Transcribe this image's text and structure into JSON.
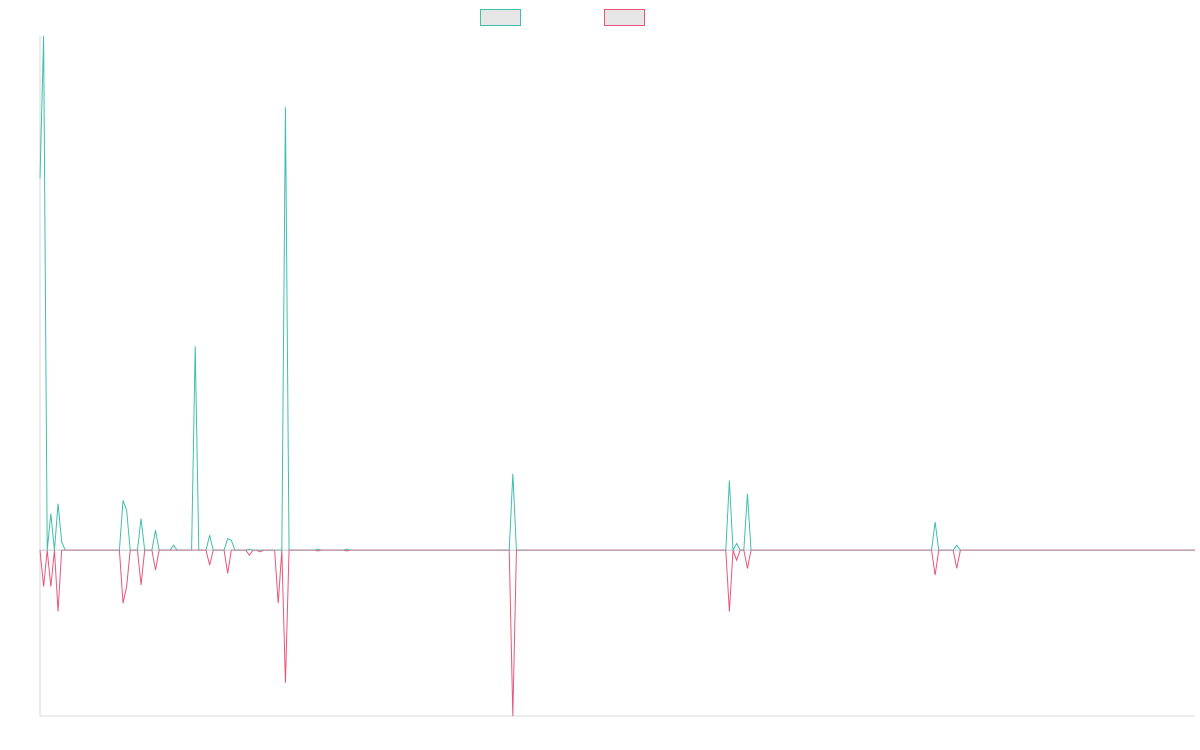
{
  "chart_data": {
    "type": "line",
    "title": "",
    "xlabel": "",
    "ylabel": "",
    "grid": false,
    "legend_position": "top-center",
    "ylim": [
      -100,
      310
    ],
    "x_count": 320,
    "series": [
      {
        "name": "",
        "color": "#3fbfad",
        "legend_fill": "#e6e6e6",
        "points": [
          [
            0,
            224
          ],
          [
            1,
            310
          ],
          [
            2,
            0
          ],
          [
            3,
            22
          ],
          [
            4,
            0
          ],
          [
            5,
            28
          ],
          [
            6,
            5
          ],
          [
            7,
            0
          ],
          [
            22,
            0
          ],
          [
            23,
            30
          ],
          [
            24,
            24
          ],
          [
            25,
            0
          ],
          [
            27,
            0
          ],
          [
            28,
            19
          ],
          [
            29,
            0
          ],
          [
            31,
            0
          ],
          [
            32,
            12
          ],
          [
            33,
            0
          ],
          [
            36,
            0
          ],
          [
            37,
            3
          ],
          [
            38,
            0
          ],
          [
            42,
            0
          ],
          [
            43,
            123
          ],
          [
            44,
            0
          ],
          [
            46,
            0
          ],
          [
            47,
            9
          ],
          [
            48,
            0
          ],
          [
            51,
            0
          ],
          [
            52,
            7
          ],
          [
            53,
            6
          ],
          [
            54,
            0
          ],
          [
            57,
            0
          ],
          [
            58,
            0.5
          ],
          [
            59,
            0
          ],
          [
            67,
            0
          ],
          [
            68,
            267
          ],
          [
            69,
            0
          ],
          [
            76,
            0
          ],
          [
            77,
            0.5
          ],
          [
            78,
            0
          ],
          [
            84,
            0
          ],
          [
            85,
            0.5
          ],
          [
            86,
            0
          ],
          [
            130,
            0
          ],
          [
            131,
            46
          ],
          [
            132,
            0
          ],
          [
            190,
            0
          ],
          [
            191,
            42
          ],
          [
            192,
            0
          ],
          [
            193,
            4
          ],
          [
            194,
            0
          ],
          [
            195,
            0
          ],
          [
            196,
            34
          ],
          [
            197,
            0
          ],
          [
            247,
            0
          ],
          [
            248,
            17
          ],
          [
            249,
            0
          ],
          [
            253,
            0
          ],
          [
            254,
            3
          ],
          [
            255,
            0
          ],
          [
            320,
            0
          ]
        ]
      },
      {
        "name": "",
        "color": "#e8577a",
        "legend_fill": "#e6e6e6",
        "points": [
          [
            0,
            0
          ],
          [
            1,
            -22
          ],
          [
            2,
            0
          ],
          [
            3,
            -22
          ],
          [
            4,
            0
          ],
          [
            5,
            -37
          ],
          [
            6,
            0
          ],
          [
            22,
            0
          ],
          [
            23,
            -32
          ],
          [
            24,
            -22
          ],
          [
            25,
            0
          ],
          [
            27,
            0
          ],
          [
            28,
            -21
          ],
          [
            29,
            0
          ],
          [
            31,
            0
          ],
          [
            32,
            -12
          ],
          [
            33,
            0
          ],
          [
            46,
            0
          ],
          [
            47,
            -9
          ],
          [
            48,
            0
          ],
          [
            51,
            0
          ],
          [
            52,
            -14
          ],
          [
            53,
            0
          ],
          [
            57,
            0
          ],
          [
            58,
            -3
          ],
          [
            59,
            0
          ],
          [
            60,
            0
          ],
          [
            61,
            -1
          ],
          [
            62,
            0
          ],
          [
            65,
            0
          ],
          [
            66,
            -32
          ],
          [
            67,
            0
          ],
          [
            68,
            -80
          ],
          [
            69,
            0
          ],
          [
            76,
            0
          ],
          [
            77,
            -0.5
          ],
          [
            78,
            0
          ],
          [
            84,
            0
          ],
          [
            85,
            -0.5
          ],
          [
            86,
            0
          ],
          [
            130,
            0
          ],
          [
            131,
            -100
          ],
          [
            132,
            0
          ],
          [
            190,
            0
          ],
          [
            191,
            -37
          ],
          [
            192,
            0
          ],
          [
            193,
            -6
          ],
          [
            194,
            0
          ],
          [
            195,
            0
          ],
          [
            196,
            -11
          ],
          [
            197,
            0
          ],
          [
            247,
            0
          ],
          [
            248,
            -15
          ],
          [
            249,
            0
          ],
          [
            253,
            0
          ],
          [
            254,
            -11
          ],
          [
            255,
            0
          ],
          [
            320,
            0
          ]
        ]
      }
    ],
    "axis_color": "#d9d9d9",
    "baseline_color": "#8aa6b0"
  }
}
